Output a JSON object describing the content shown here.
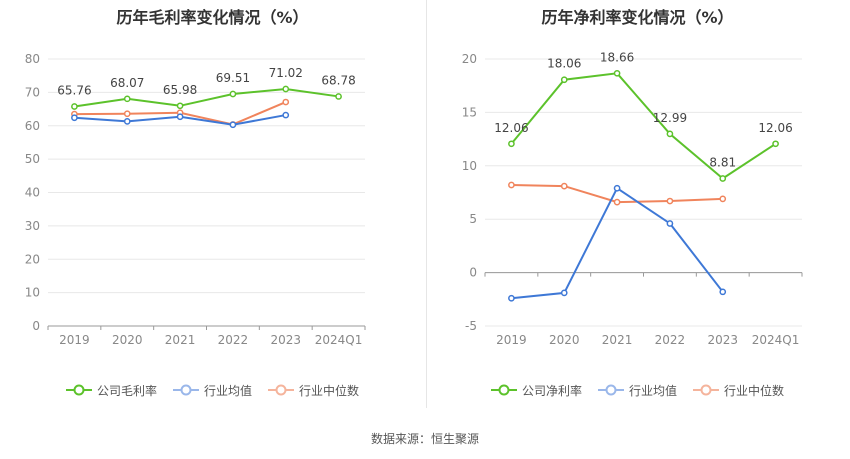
{
  "charts": {
    "gross": {
      "title": "历年毛利率变化情况（%）",
      "legend": [
        "公司毛利率",
        "行业均值",
        "行业中位数"
      ]
    },
    "net": {
      "title": "历年净利率变化情况（%）",
      "legend": [
        "公司净利率",
        "行业均值",
        "行业中位数"
      ]
    }
  },
  "source": "数据来源：恒生聚源",
  "colors": {
    "company": "#5cc22b",
    "industry_avg": "#3e78d6",
    "industry_median": "#f0845c",
    "grid": "#e8e8e8",
    "axis": "#999999"
  },
  "chart_data": [
    {
      "type": "line",
      "title": "历年毛利率变化情况（%）",
      "categories": [
        "2019",
        "2020",
        "2021",
        "2022",
        "2023",
        "2024Q1"
      ],
      "ylim": [
        0,
        80
      ],
      "yticks": [
        0,
        10,
        20,
        30,
        40,
        50,
        60,
        70,
        80
      ],
      "grid": true,
      "legend_position": "bottom",
      "series": [
        {
          "name": "公司毛利率",
          "values": [
            65.76,
            68.07,
            65.98,
            69.51,
            71.02,
            68.78
          ],
          "labels": true
        },
        {
          "name": "行业均值",
          "values": [
            62.4,
            61.3,
            62.7,
            60.3,
            63.2,
            null
          ]
        },
        {
          "name": "行业中位数",
          "values": [
            63.5,
            63.6,
            63.9,
            60.4,
            67.1,
            null
          ]
        }
      ]
    },
    {
      "type": "line",
      "title": "历年净利率变化情况（%）",
      "categories": [
        "2019",
        "2020",
        "2021",
        "2022",
        "2023",
        "2024Q1"
      ],
      "ylim": [
        -5,
        20
      ],
      "yticks": [
        -5,
        0,
        5,
        10,
        15,
        20
      ],
      "grid": true,
      "legend_position": "bottom",
      "series": [
        {
          "name": "公司净利率",
          "values": [
            12.06,
            18.06,
            18.66,
            12.99,
            8.81,
            12.06
          ],
          "labels": true
        },
        {
          "name": "行业均值",
          "values": [
            -2.4,
            -1.9,
            7.9,
            4.6,
            -1.8,
            null
          ]
        },
        {
          "name": "行业中位数",
          "values": [
            8.2,
            8.1,
            6.6,
            6.7,
            6.9,
            null
          ]
        }
      ]
    }
  ]
}
